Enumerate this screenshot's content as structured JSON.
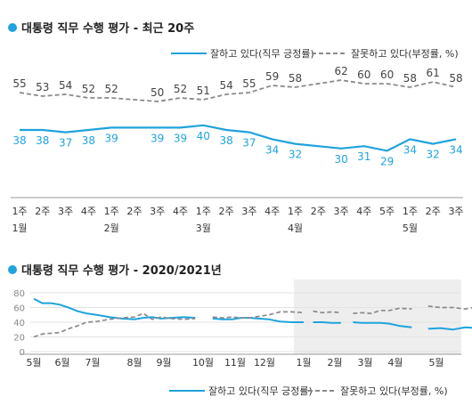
{
  "colors": {
    "positive": "#1fa3dc",
    "negative": "#8a8a8a",
    "shade": "#eeeeee",
    "title": "#222222",
    "label": "#333333",
    "dot": "#1fa3dc"
  },
  "chart_data": [
    {
      "type": "line",
      "title": "대통령 직무 수행 평가 - 최근 20주",
      "categories": [
        "1주",
        "2주",
        "3주",
        "4주",
        "1주",
        "2주",
        "3주",
        "4주",
        "1주",
        "2주",
        "3주",
        "4주",
        "1주",
        "2주",
        "3주",
        "4주",
        "5주",
        "1주",
        "2주",
        "3주"
      ],
      "month_labels": [
        {
          "index": 0,
          "label": "1월"
        },
        {
          "index": 4,
          "label": "2월"
        },
        {
          "index": 8,
          "label": "3월"
        },
        {
          "index": 12,
          "label": "4월"
        },
        {
          "index": 17,
          "label": "5월"
        }
      ],
      "series": [
        {
          "name": "잘하고 있다(직무 긍정률)",
          "style": "solid",
          "values": [
            38,
            38,
            37,
            38,
            39,
            null,
            39,
            39,
            40,
            38,
            37,
            34,
            32,
            null,
            30,
            31,
            29,
            34,
            32,
            34
          ],
          "labels_shown": [
            38,
            38,
            37,
            38,
            39,
            null,
            39,
            39,
            40,
            38,
            37,
            34,
            32,
            null,
            30,
            31,
            29,
            34,
            32,
            34
          ]
        },
        {
          "name": "잘못하고 있다(부정률, %)",
          "style": "dashed",
          "values": [
            55,
            53,
            54,
            52,
            52,
            null,
            50,
            52,
            51,
            54,
            55,
            59,
            58,
            null,
            62,
            60,
            60,
            58,
            61,
            58
          ],
          "labels_shown": [
            55,
            53,
            54,
            52,
            52,
            null,
            50,
            52,
            51,
            54,
            55,
            59,
            58,
            null,
            62,
            60,
            60,
            58,
            61,
            58
          ]
        }
      ],
      "legend_position": "top-right",
      "grid": false
    },
    {
      "type": "line",
      "title": "대통령 직무 수행 평가 - 2020/2021년",
      "ylim": [
        0,
        80
      ],
      "yticks": [
        "0",
        "20",
        "40",
        "60",
        "80"
      ],
      "month_ticks": [
        "5월",
        "6월",
        "7월",
        "8월",
        "9월",
        "10월",
        "11월",
        "12월",
        "1월",
        "2월",
        "3월",
        "4월",
        "5월"
      ],
      "shaded_period": "2021년",
      "series": [
        {
          "name": "잘하고 있다(직무 긍정률)",
          "style": "solid",
          "segments": [
            [
              [
                0.0,
                72
              ],
              [
                0.3,
                66
              ],
              [
                0.6,
                66
              ],
              [
                0.9,
                64
              ],
              [
                1.2,
                60
              ],
              [
                1.5,
                55
              ],
              [
                1.8,
                52
              ],
              [
                2.1,
                50
              ],
              [
                2.4,
                47
              ],
              [
                2.7,
                45
              ],
              [
                3.0,
                44
              ],
              [
                3.3,
                46
              ],
              [
                3.6,
                47
              ],
              [
                3.9,
                45
              ],
              [
                4.2,
                46
              ],
              [
                4.5,
                47
              ],
              [
                4.8,
                46
              ]
            ],
            [
              [
                5.3,
                45
              ],
              [
                5.6,
                44
              ],
              [
                5.9,
                44
              ],
              [
                6.2,
                46
              ],
              [
                6.5,
                46
              ],
              [
                6.8,
                45
              ],
              [
                7.1,
                44
              ],
              [
                7.4,
                41
              ],
              [
                7.7,
                40
              ],
              [
                8.0,
                40
              ]
            ],
            [
              [
                8.3,
                40
              ],
              [
                8.6,
                40
              ],
              [
                8.9,
                39
              ],
              [
                9.2,
                39
              ]
            ],
            [
              [
                9.6,
                40
              ],
              [
                9.9,
                39
              ],
              [
                10.2,
                39
              ],
              [
                10.5,
                39
              ],
              [
                10.8,
                38
              ],
              [
                11.1,
                35
              ],
              [
                11.4,
                33
              ]
            ],
            [
              [
                11.8,
                31
              ],
              [
                12.1,
                32
              ],
              [
                12.4,
                30
              ],
              [
                12.7,
                33
              ],
              [
                13.0,
                32
              ],
              [
                13.3,
                34
              ]
            ]
          ]
        },
        {
          "name": "잘못하고 있다(부정률, %)",
          "style": "dashed",
          "segments": [
            [
              [
                0.0,
                20
              ],
              [
                0.3,
                24
              ],
              [
                0.6,
                25
              ],
              [
                0.9,
                26
              ],
              [
                1.2,
                31
              ],
              [
                1.5,
                35
              ],
              [
                1.8,
                40
              ],
              [
                2.1,
                41
              ],
              [
                2.4,
                44
              ],
              [
                2.7,
                46
              ],
              [
                3.0,
                47
              ],
              [
                3.3,
                52
              ],
              [
                3.6,
                44
              ],
              [
                3.9,
                47
              ],
              [
                4.2,
                45
              ],
              [
                4.5,
                44
              ],
              [
                4.8,
                45
              ]
            ],
            [
              [
                5.3,
                47
              ],
              [
                5.6,
                46
              ],
              [
                5.9,
                47
              ],
              [
                6.2,
                46
              ],
              [
                6.5,
                46
              ],
              [
                6.8,
                48
              ],
              [
                7.1,
                50
              ],
              [
                7.4,
                54
              ],
              [
                7.7,
                54
              ],
              [
                8.0,
                53
              ]
            ],
            [
              [
                8.3,
                55
              ],
              [
                8.6,
                53
              ],
              [
                8.9,
                54
              ],
              [
                9.2,
                53
              ]
            ],
            [
              [
                9.6,
                52
              ],
              [
                9.9,
                53
              ],
              [
                10.2,
                52
              ],
              [
                10.5,
                56
              ],
              [
                10.8,
                56
              ],
              [
                11.1,
                59
              ],
              [
                11.4,
                58
              ]
            ],
            [
              [
                11.8,
                62
              ],
              [
                12.1,
                60
              ],
              [
                12.4,
                60
              ],
              [
                12.7,
                58
              ],
              [
                13.0,
                61
              ],
              [
                13.3,
                58
              ]
            ]
          ]
        }
      ],
      "legend_position": "bottom-right"
    }
  ]
}
